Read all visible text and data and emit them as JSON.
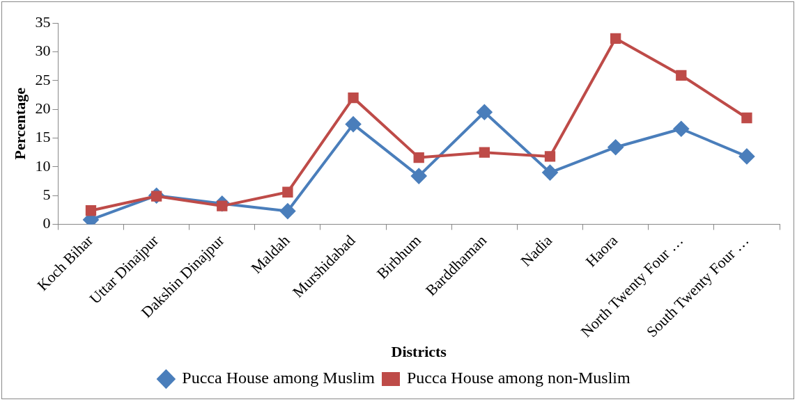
{
  "chart_data": {
    "type": "line",
    "xlabel": "Districts",
    "ylabel": "Percentage",
    "categories": [
      "Koch Bihar",
      "Uttar Dinajpur",
      "Dakshin Dinajpur",
      "Maldah",
      "Murshidabad",
      "Birbhum",
      "Barddhaman",
      "Nadia",
      "Haora",
      "North Twenty Four …",
      "South Twenty Four …"
    ],
    "series": [
      {
        "name": "Pucca House among Muslim",
        "color": "#4a7ebb",
        "marker": "diamond",
        "values": [
          0.8,
          5.0,
          3.6,
          2.3,
          17.4,
          8.4,
          19.5,
          9.0,
          13.4,
          16.6,
          11.8
        ]
      },
      {
        "name": "Pucca House among non-Muslim",
        "color": "#be4b48",
        "marker": "square",
        "values": [
          2.4,
          4.9,
          3.2,
          5.6,
          22.0,
          11.6,
          12.5,
          11.8,
          32.3,
          25.9,
          18.5
        ]
      }
    ],
    "ylim": [
      0,
      35
    ],
    "yticks": [
      0,
      5,
      10,
      15,
      20,
      25,
      30,
      35
    ],
    "grid": false,
    "legend": "bottom",
    "line_style": "solid"
  }
}
